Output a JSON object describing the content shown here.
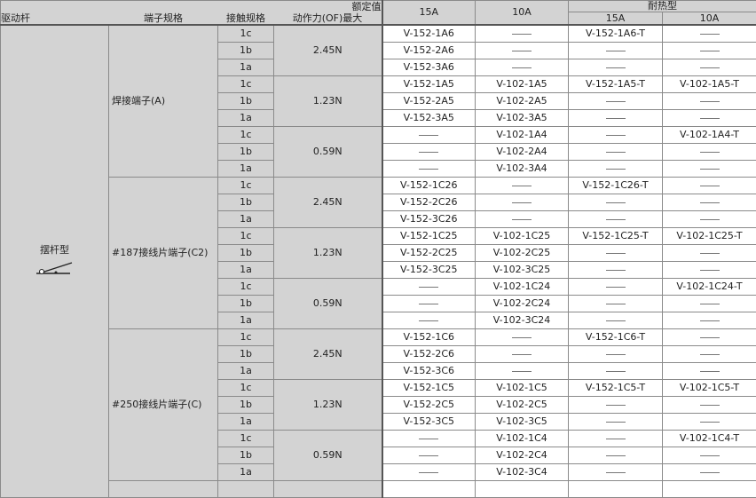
{
  "header": {
    "actuator": "驱动杆",
    "terminal": "端子规格",
    "contact": "接触规格",
    "rating": "额定值",
    "force": "动作力(OF)最大",
    "a15": "15A",
    "a10": "10A",
    "heat": "耐热型",
    "h15": "15A",
    "h10": "10A"
  },
  "actuator_type": "摆杆型",
  "actuator_icon": "hinge-lever-icon",
  "dash": "—",
  "groups": [
    {
      "terminal": "焊接端子(A)",
      "forces": [
        {
          "force": "2.45N",
          "rows": [
            [
              "1c",
              "V-152-1A6",
              "",
              "V-152-1A6-T",
              ""
            ],
            [
              "1b",
              "V-152-2A6",
              "",
              "",
              ""
            ],
            [
              "1a",
              "V-152-3A6",
              "",
              "",
              ""
            ]
          ]
        },
        {
          "force": "1.23N",
          "rows": [
            [
              "1c",
              "V-152-1A5",
              "V-102-1A5",
              "V-152-1A5-T",
              "V-102-1A5-T"
            ],
            [
              "1b",
              "V-152-2A5",
              "V-102-2A5",
              "",
              ""
            ],
            [
              "1a",
              "V-152-3A5",
              "V-102-3A5",
              "",
              ""
            ]
          ]
        },
        {
          "force": "0.59N",
          "rows": [
            [
              "1c",
              "",
              "V-102-1A4",
              "",
              "V-102-1A4-T"
            ],
            [
              "1b",
              "",
              "V-102-2A4",
              "",
              ""
            ],
            [
              "1a",
              "",
              "V-102-3A4",
              "",
              ""
            ]
          ]
        }
      ]
    },
    {
      "terminal": "#187接线片端子(C2)",
      "forces": [
        {
          "force": "2.45N",
          "rows": [
            [
              "1c",
              "V-152-1C26",
              "",
              "V-152-1C26-T",
              ""
            ],
            [
              "1b",
              "V-152-2C26",
              "",
              "",
              ""
            ],
            [
              "1a",
              "V-152-3C26",
              "",
              "",
              ""
            ]
          ]
        },
        {
          "force": "1.23N",
          "rows": [
            [
              "1c",
              "V-152-1C25",
              "V-102-1C25",
              "V-152-1C25-T",
              "V-102-1C25-T"
            ],
            [
              "1b",
              "V-152-2C25",
              "V-102-2C25",
              "",
              ""
            ],
            [
              "1a",
              "V-152-3C25",
              "V-102-3C25",
              "",
              ""
            ]
          ]
        },
        {
          "force": "0.59N",
          "rows": [
            [
              "1c",
              "",
              "V-102-1C24",
              "",
              "V-102-1C24-T"
            ],
            [
              "1b",
              "",
              "V-102-2C24",
              "",
              ""
            ],
            [
              "1a",
              "",
              "V-102-3C24",
              "",
              ""
            ]
          ]
        }
      ]
    },
    {
      "terminal": "#250接线片端子(C)",
      "forces": [
        {
          "force": "2.45N",
          "rows": [
            [
              "1c",
              "V-152-1C6",
              "",
              "V-152-1C6-T",
              ""
            ],
            [
              "1b",
              "V-152-2C6",
              "",
              "",
              ""
            ],
            [
              "1a",
              "V-152-3C6",
              "",
              "",
              ""
            ]
          ]
        },
        {
          "force": "1.23N",
          "rows": [
            [
              "1c",
              "V-152-1C5",
              "V-102-1C5",
              "V-152-1C5-T",
              "V-102-1C5-T"
            ],
            [
              "1b",
              "V-152-2C5",
              "V-102-2C5",
              "",
              ""
            ],
            [
              "1a",
              "V-152-3C5",
              "V-102-3C5",
              "",
              ""
            ]
          ]
        },
        {
          "force": "0.59N",
          "rows": [
            [
              "1c",
              "",
              "V-102-1C4",
              "",
              "V-102-1C4-T"
            ],
            [
              "1b",
              "",
              "V-102-2C4",
              "",
              ""
            ],
            [
              "1a",
              "",
              "V-102-3C4",
              "",
              ""
            ]
          ]
        }
      ]
    }
  ]
}
